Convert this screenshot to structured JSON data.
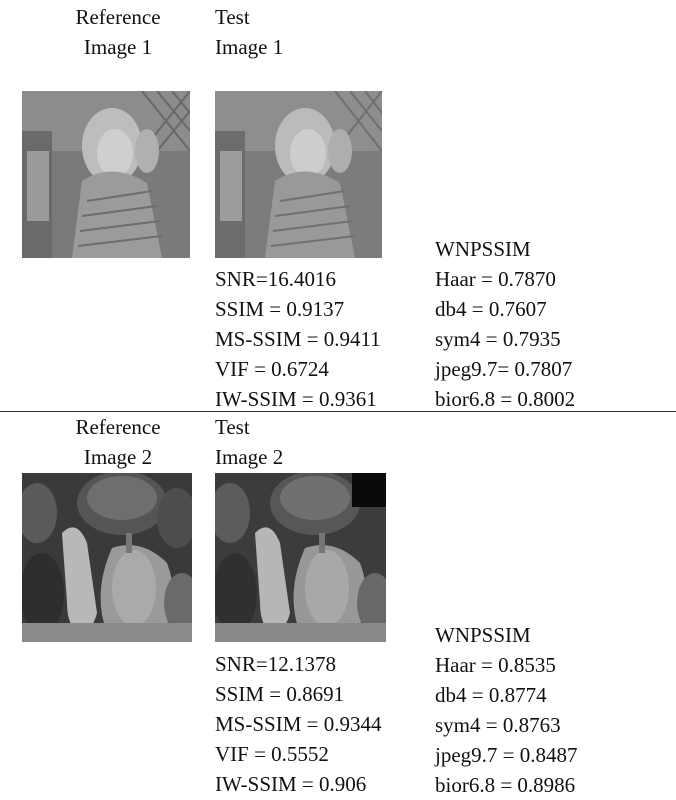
{
  "rows": [
    {
      "ref_header": [
        "Reference",
        "Image 1"
      ],
      "test_header": [
        "Test",
        "Image 1"
      ],
      "metrics": [
        "SNR=16.4016",
        "SSIM = 0.9137",
        "MS-SSIM = 0.9411",
        "VIF = 0.6724",
        "IW-SSIM = 0.9361"
      ],
      "wnpssim_title": "WNPSSIM",
      "wnpssim": [
        "Haar = 0.7870",
        "db4 = 0.7607",
        "sym4 = 0.7935",
        "jpeg9.7= 0.7807",
        "bior6.8 = 0.8002"
      ]
    },
    {
      "ref_header": [
        "Reference",
        "Image 2"
      ],
      "test_header": [
        "Test",
        "Image 2"
      ],
      "metrics": [
        "SNR=12.1378",
        "SSIM = 0.8691",
        "MS-SSIM = 0.9344",
        "VIF = 0.5552",
        "IW-SSIM = 0.906"
      ],
      "wnpssim_title": "WNPSSIM",
      "wnpssim": [
        "Haar = 0.8535",
        "db4 = 0.8774",
        "sym4 = 0.8763",
        "jpeg9.7 = 0.8487",
        "bior6.8 = 0.8986"
      ]
    }
  ]
}
